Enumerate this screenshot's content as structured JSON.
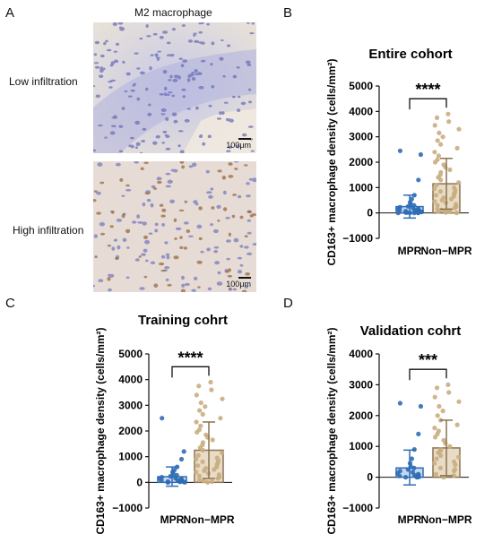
{
  "panels": {
    "A": {
      "letter": "A",
      "title": "M2 macrophage",
      "rows": [
        {
          "label": "Low infiltration",
          "scale": "100μm"
        },
        {
          "label": "High infiltration",
          "scale": "100μm"
        }
      ]
    },
    "B": {
      "letter": "B"
    },
    "C": {
      "letter": "C"
    },
    "D": {
      "letter": "D"
    }
  },
  "colors": {
    "mpr": "#2f6db5",
    "nonmpr": "#c9ad7f",
    "nonmpr_bar": "#e8dcc7",
    "nonmpr_edge": "#8a7350",
    "mpr_bar": "#c6d7ee"
  },
  "chart_data": [
    {
      "panel": "B",
      "type": "bar",
      "title": "Entire cohort",
      "ylabel": "CD163+ macrophage density (cells/mm²)",
      "xlabel": "",
      "categories": [
        "MPR",
        "Non−MPR"
      ],
      "values": [
        250,
        1150
      ],
      "error_upper": [
        700,
        2150
      ],
      "error_lower": [
        -200,
        150
      ],
      "ylim": [
        -1000,
        5000
      ],
      "yticks": [
        "5000",
        "4000",
        "3000",
        "2000",
        "1000",
        "0",
        "−1000"
      ],
      "significance": "****",
      "points": {
        "MPR": [
          2450,
          2300,
          1300,
          700,
          550,
          420,
          350,
          300,
          260,
          230,
          200,
          180,
          160,
          140,
          120,
          100,
          90,
          80,
          70,
          60,
          50,
          40,
          30,
          20,
          15,
          10,
          5,
          0,
          0,
          0
        ],
        "Non−MPR": [
          3900,
          3750,
          3600,
          3450,
          3300,
          3150,
          3000,
          2850,
          2700,
          2550,
          2400,
          2250,
          2100,
          2000,
          1900,
          1800,
          1700,
          1600,
          1500,
          1400,
          1300,
          1200,
          1100,
          1000,
          950,
          900,
          850,
          800,
          750,
          700,
          650,
          600,
          550,
          500,
          450,
          400,
          350,
          300,
          250,
          200,
          150,
          120,
          100,
          80,
          60,
          40,
          20,
          0
        ]
      }
    },
    {
      "panel": "C",
      "type": "bar",
      "title": "Training cohrt",
      "ylabel": "CD163+ macrophage density (cells/mm²)",
      "xlabel": "",
      "categories": [
        "MPR",
        "Non−MPR"
      ],
      "values": [
        220,
        1250
      ],
      "error_upper": [
        600,
        2350
      ],
      "error_lower": [
        -150,
        150
      ],
      "ylim": [
        -1000,
        5000
      ],
      "yticks": [
        "5000",
        "4000",
        "3000",
        "2000",
        "1000",
        "0",
        "−1000"
      ],
      "significance": "****",
      "points": {
        "MPR": [
          2500,
          1200,
          900,
          600,
          480,
          400,
          330,
          280,
          240,
          200,
          170,
          150,
          130,
          110,
          90,
          70,
          55,
          40,
          30,
          20,
          10,
          5,
          0,
          0
        ],
        "Non−MPR": [
          3900,
          3750,
          3600,
          3400,
          3250,
          3100,
          2950,
          2800,
          2650,
          2500,
          2350,
          2200,
          2050,
          1950,
          1850,
          1750,
          1650,
          1550,
          1450,
          1350,
          1250,
          1150,
          1050,
          950,
          900,
          850,
          800,
          750,
          700,
          650,
          600,
          550,
          500,
          450,
          400,
          350,
          300,
          250,
          200,
          150,
          100,
          60,
          30,
          0
        ]
      }
    },
    {
      "panel": "D",
      "type": "bar",
      "title": "Validation cohrt",
      "ylabel": "CD163+ macrophage density (cells/mm²)",
      "xlabel": "",
      "categories": [
        "MPR",
        "Non−MPR"
      ],
      "values": [
        300,
        950
      ],
      "error_upper": [
        880,
        1850
      ],
      "error_lower": [
        -250,
        50
      ],
      "ylim": [
        -1000,
        4000
      ],
      "yticks": [
        "4000",
        "3000",
        "2000",
        "1000",
        "0",
        "−1000"
      ],
      "significance": "***",
      "points": {
        "MPR": [
          2400,
          2300,
          1400,
          900,
          600,
          450,
          350,
          300,
          250,
          200,
          160,
          130,
          100,
          80,
          60,
          40,
          20,
          10,
          0,
          0
        ],
        "Non−MPR": [
          3000,
          2900,
          2750,
          2600,
          2450,
          2300,
          2150,
          2000,
          1850,
          1700,
          1600,
          1500,
          1400,
          1300,
          1200,
          1100,
          1000,
          900,
          850,
          800,
          700,
          650,
          600,
          500,
          450,
          400,
          300,
          250,
          200,
          100,
          50,
          0
        ]
      }
    }
  ]
}
